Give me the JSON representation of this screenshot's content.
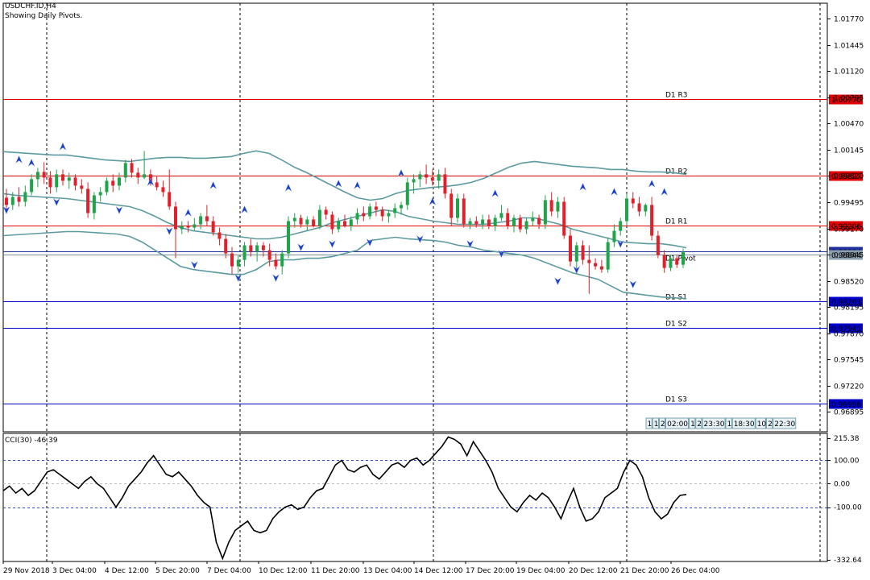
{
  "header": {
    "symbol": "USDCHF.ID,H4",
    "subtitle": "Showing Daily Pivots."
  },
  "chart_data": [
    {
      "type": "candlestick",
      "y_ticks": [
        "1.01770",
        "1.01445",
        "1.01120",
        "1.00795",
        "1.00470",
        "1.00145",
        "0.99820",
        "0.99495",
        "0.99170",
        "0.98845",
        "0.98520",
        "0.98195",
        "0.97870",
        "0.97545",
        "0.97220",
        "0.96895"
      ],
      "ylim": [
        0.9665,
        1.0196
      ],
      "x_tick_labels": [
        "29 Nov 2018",
        "3 Dec 04:00",
        "4 Dec 12:00",
        "5 Dec 20:00",
        "7 Dec 04:00",
        "10 Dec 12:00",
        "11 Dec 20:00",
        "13 Dec 04:00",
        "14 Dec 12:00",
        "17 Dec 20:00",
        "19 Dec 04:00",
        "20 Dec 12:00",
        "21 Dec 20:00",
        "26 Dec 04:00"
      ],
      "pivot_levels": [
        {
          "name": "D1 R3",
          "label": "D1 R3",
          "value": 1.0077,
          "value_label": "1.00770",
          "color": "#e00000"
        },
        {
          "name": "D1 R2",
          "label": "D1 R2",
          "value": 0.99827,
          "value_label": "0.99827",
          "color": "#e00000"
        },
        {
          "name": "D1 R1",
          "label": "D1 R1",
          "value": 0.99206,
          "value_label": "0.99206",
          "color": "#e00000"
        },
        {
          "name": "D1 Pivot",
          "label": "D1 Pivot",
          "value": 0.98884,
          "value_label": "0.98884",
          "color": "#1f2fa0"
        },
        {
          "name": "D1 S1",
          "label": "D1 S1",
          "value": 0.98263,
          "value_label": "0.98263",
          "color": "#0000c8"
        },
        {
          "name": "D1 S2",
          "label": "D1 S2",
          "value": 0.97941,
          "value_label": "0.97941",
          "color": "#0000c8"
        },
        {
          "name": "D1 S3",
          "label": "D1 S3",
          "value": 0.96998,
          "value_label": "0.96998",
          "color": "#0000c8"
        }
      ],
      "current_price": 0.98844,
      "current_price_label": "0.98844",
      "candles": [
        [
          0.9955,
          0.9966,
          0.9938,
          0.9946
        ],
        [
          0.9946,
          0.9962,
          0.994,
          0.9956
        ],
        [
          0.9956,
          0.9968,
          0.9944,
          0.995
        ],
        [
          0.995,
          0.997,
          0.9944,
          0.9962
        ],
        [
          0.9962,
          0.9984,
          0.9958,
          0.9978
        ],
        [
          0.9978,
          0.9992,
          0.9968,
          0.9987
        ],
        [
          0.9987,
          0.9999,
          0.9972,
          0.998
        ],
        [
          0.998,
          0.9988,
          0.996,
          0.9968
        ],
        [
          0.9968,
          0.999,
          0.9962,
          0.9984
        ],
        [
          0.9984,
          0.999,
          0.997,
          0.9976
        ],
        [
          0.9976,
          0.9986,
          0.9966,
          0.998
        ],
        [
          0.998,
          0.9984,
          0.9964,
          0.997
        ],
        [
          0.997,
          0.9978,
          0.996,
          0.9966
        ],
        [
          0.9966,
          0.9974,
          0.993,
          0.9936
        ],
        [
          0.9936,
          0.9962,
          0.9928,
          0.9958
        ],
        [
          0.9958,
          0.9968,
          0.995,
          0.9962
        ],
        [
          0.9962,
          0.998,
          0.9958,
          0.9976
        ],
        [
          0.9976,
          0.9984,
          0.9962,
          0.997
        ],
        [
          0.997,
          0.9986,
          0.9964,
          0.998
        ],
        [
          0.998,
          1.0002,
          0.9974,
          0.9998
        ],
        [
          0.9998,
          1.0003,
          0.998,
          0.9986
        ],
        [
          0.9986,
          0.9992,
          0.9972,
          0.998
        ],
        [
          0.998,
          1.0013,
          0.9978,
          0.9984
        ],
        [
          0.9984,
          0.999,
          0.997,
          0.9974
        ],
        [
          0.9974,
          0.9982,
          0.9964,
          0.9968
        ],
        [
          0.9968,
          0.9976,
          0.9956,
          0.9962
        ],
        [
          0.9962,
          0.999,
          0.994,
          0.9944
        ],
        [
          0.9944,
          0.995,
          0.988,
          0.9916
        ],
        [
          0.9916,
          0.9926,
          0.991,
          0.992
        ],
        [
          0.992,
          0.9926,
          0.9912,
          0.9918
        ],
        [
          0.9918,
          0.993,
          0.9914,
          0.9922
        ],
        [
          0.9922,
          0.9936,
          0.9916,
          0.9932
        ],
        [
          0.9932,
          0.9946,
          0.992,
          0.9926
        ],
        [
          0.9926,
          0.9932,
          0.9908,
          0.9912
        ],
        [
          0.9912,
          0.9918,
          0.9896,
          0.9904
        ],
        [
          0.9904,
          0.991,
          0.988,
          0.9886
        ],
        [
          0.9886,
          0.9894,
          0.986,
          0.987
        ],
        [
          0.987,
          0.9884,
          0.9862,
          0.9878
        ],
        [
          0.9878,
          0.99,
          0.987,
          0.9896
        ],
        [
          0.9896,
          0.9904,
          0.9882,
          0.9888
        ],
        [
          0.9888,
          0.99,
          0.9876,
          0.9896
        ],
        [
          0.9896,
          0.99,
          0.9882,
          0.989
        ],
        [
          0.989,
          0.9898,
          0.987,
          0.9878
        ],
        [
          0.9878,
          0.9886,
          0.9866,
          0.987
        ],
        [
          0.987,
          0.989,
          0.986,
          0.9886
        ],
        [
          0.9886,
          0.9932,
          0.988,
          0.9926
        ],
        [
          0.9926,
          0.9936,
          0.9918,
          0.993
        ],
        [
          0.993,
          0.9934,
          0.9918,
          0.9922
        ],
        [
          0.9922,
          0.9932,
          0.9914,
          0.9928
        ],
        [
          0.9928,
          0.9932,
          0.9918,
          0.992
        ],
        [
          0.992,
          0.9946,
          0.9916,
          0.994
        ],
        [
          0.994,
          0.9944,
          0.9928,
          0.9934
        ],
        [
          0.9934,
          0.9938,
          0.991,
          0.9916
        ],
        [
          0.9916,
          0.993,
          0.9912,
          0.9926
        ],
        [
          0.9926,
          0.9934,
          0.9918,
          0.992
        ],
        [
          0.992,
          0.9932,
          0.9914,
          0.9928
        ],
        [
          0.9928,
          0.9942,
          0.9922,
          0.9936
        ],
        [
          0.9936,
          0.9944,
          0.9926,
          0.9932
        ],
        [
          0.9932,
          0.9948,
          0.9928,
          0.9944
        ],
        [
          0.9944,
          0.995,
          0.9932,
          0.994
        ],
        [
          0.994,
          0.9944,
          0.9926,
          0.9932
        ],
        [
          0.9932,
          0.994,
          0.9924,
          0.9936
        ],
        [
          0.9936,
          0.9948,
          0.993,
          0.9942
        ],
        [
          0.9942,
          0.995,
          0.9934,
          0.9946
        ],
        [
          0.9946,
          0.998,
          0.994,
          0.9974
        ],
        [
          0.9974,
          0.9984,
          0.996,
          0.9978
        ],
        [
          0.9978,
          0.9988,
          0.9968,
          0.9984
        ],
        [
          0.9984,
          0.9996,
          0.9972,
          0.998
        ],
        [
          0.998,
          0.999,
          0.997,
          0.9976
        ],
        [
          0.9976,
          0.999,
          0.9966,
          0.9984
        ],
        [
          0.9984,
          0.9992,
          0.9954,
          0.996
        ],
        [
          0.996,
          0.9966,
          0.992,
          0.993
        ],
        [
          0.993,
          0.996,
          0.9924,
          0.9954
        ],
        [
          0.9954,
          0.996,
          0.9918,
          0.9922
        ],
        [
          0.9922,
          0.993,
          0.9916,
          0.9926
        ],
        [
          0.9926,
          0.9932,
          0.9918,
          0.9922
        ],
        [
          0.9922,
          0.9934,
          0.9916,
          0.9928
        ],
        [
          0.9928,
          0.9934,
          0.9916,
          0.992
        ],
        [
          0.992,
          0.9934,
          0.9914,
          0.993
        ],
        [
          0.993,
          0.9946,
          0.9926,
          0.9936
        ],
        [
          0.9936,
          0.9942,
          0.9916,
          0.992
        ],
        [
          0.992,
          0.9934,
          0.9912,
          0.993
        ],
        [
          0.993,
          0.9934,
          0.9912,
          0.9916
        ],
        [
          0.9916,
          0.993,
          0.991,
          0.9926
        ],
        [
          0.9926,
          0.9938,
          0.992,
          0.993
        ],
        [
          0.993,
          0.9934,
          0.9916,
          0.9922
        ],
        [
          0.9922,
          0.9958,
          0.9916,
          0.9952
        ],
        [
          0.9952,
          0.9962,
          0.9932,
          0.9938
        ],
        [
          0.9938,
          0.9956,
          0.993,
          0.995
        ],
        [
          0.995,
          0.9956,
          0.9904,
          0.9908
        ],
        [
          0.9908,
          0.9916,
          0.987,
          0.9876
        ],
        [
          0.9876,
          0.99,
          0.986,
          0.9896
        ],
        [
          0.9896,
          0.9902,
          0.9872,
          0.9878
        ],
        [
          0.9878,
          0.9896,
          0.9836,
          0.9874
        ],
        [
          0.9874,
          0.988,
          0.9866,
          0.987
        ],
        [
          0.987,
          0.9878,
          0.9862,
          0.9866
        ],
        [
          0.9866,
          0.9906,
          0.9862,
          0.99
        ],
        [
          0.99,
          0.9922,
          0.9894,
          0.9914
        ],
        [
          0.9914,
          0.993,
          0.9908,
          0.9926
        ],
        [
          0.9926,
          0.996,
          0.992,
          0.9954
        ],
        [
          0.9954,
          0.9962,
          0.9942,
          0.9948
        ],
        [
          0.9948,
          0.9956,
          0.9932,
          0.9938
        ],
        [
          0.9938,
          0.9948,
          0.9932,
          0.9946
        ],
        [
          0.9946,
          0.9956,
          0.9902,
          0.9908
        ],
        [
          0.9908,
          0.9914,
          0.988,
          0.9884
        ],
        [
          0.9884,
          0.989,
          0.9862,
          0.9868
        ],
        [
          0.9868,
          0.9884,
          0.9864,
          0.988
        ],
        [
          0.988,
          0.9884,
          0.9868,
          0.9872
        ],
        [
          0.9872,
          0.9892,
          0.9868,
          0.9888
        ]
      ],
      "bollinger": {
        "upper": [
          1.0012,
          1.0011,
          1.001,
          1.0009,
          1.0008,
          1.0008,
          1.0006,
          1.0004,
          1.0002,
          1.0001,
          1.0,
          1.0002,
          1.0004,
          1.0005,
          1.0005,
          1.0004,
          1.0004,
          1.0005,
          1.0006,
          1.001,
          1.0013,
          1.001,
          1.0002,
          0.9993,
          0.9986,
          0.9978,
          0.997,
          0.9962,
          0.9955,
          0.9952,
          0.9954,
          0.996,
          0.9964,
          0.9966,
          0.9968,
          0.9969,
          0.9971,
          0.9974,
          0.9979,
          0.9986,
          0.9993,
          0.9998,
          1.0,
          0.9998,
          0.9996,
          0.9994,
          0.9993,
          0.9992,
          0.999,
          0.999,
          0.9988,
          0.9987,
          0.9987,
          0.9986,
          0.9984
        ],
        "middle": [
          0.996,
          0.9958,
          0.9957,
          0.9956,
          0.9955,
          0.9954,
          0.9952,
          0.995,
          0.9948,
          0.9946,
          0.9944,
          0.9939,
          0.9932,
          0.9924,
          0.9918,
          0.9914,
          0.9912,
          0.991,
          0.9908,
          0.9906,
          0.9904,
          0.9904,
          0.9906,
          0.991,
          0.9914,
          0.9918,
          0.9924,
          0.9928,
          0.9932,
          0.9936,
          0.994,
          0.9938,
          0.9932,
          0.9929,
          0.9926,
          0.9924,
          0.9922,
          0.9922,
          0.9922,
          0.9924,
          0.9926,
          0.993,
          0.993,
          0.9926,
          0.9922,
          0.9916,
          0.9912,
          0.9908,
          0.9904,
          0.99,
          0.9899,
          0.9898,
          0.9898,
          0.9896,
          0.9893
        ],
        "lower": [
          0.9908,
          0.9909,
          0.991,
          0.9911,
          0.9912,
          0.9913,
          0.9913,
          0.9912,
          0.9911,
          0.991,
          0.9907,
          0.99,
          0.989,
          0.988,
          0.987,
          0.9866,
          0.9864,
          0.9862,
          0.986,
          0.986,
          0.9866,
          0.9876,
          0.9878,
          0.9878,
          0.988,
          0.988,
          0.9882,
          0.9886,
          0.989,
          0.9902,
          0.9904,
          0.9906,
          0.9904,
          0.9903,
          0.9902,
          0.99,
          0.9896,
          0.9894,
          0.989,
          0.9888,
          0.9886,
          0.9884,
          0.988,
          0.9874,
          0.9868,
          0.9862,
          0.9858,
          0.9854,
          0.9846,
          0.9838,
          0.9836,
          0.9834,
          0.9832,
          0.9831,
          0.983
        ]
      },
      "fractals_up": [
        [
          2,
          1.0002
        ],
        [
          4,
          0.9998
        ],
        [
          9,
          1.0018
        ],
        [
          23,
          0.9974
        ],
        [
          29,
          0.9936
        ],
        [
          33,
          0.997
        ],
        [
          38,
          0.994
        ],
        [
          45,
          0.9967
        ],
        [
          53,
          0.9972
        ],
        [
          56,
          0.997
        ],
        [
          63,
          0.9985
        ],
        [
          68,
          0.995
        ],
        [
          78,
          0.996
        ],
        [
          92,
          0.9968
        ],
        [
          97,
          0.9962
        ],
        [
          103,
          0.9972
        ],
        [
          105,
          0.9962
        ]
      ],
      "fractals_down": [
        [
          0,
          0.994
        ],
        [
          8,
          0.995
        ],
        [
          18,
          0.994
        ],
        [
          26,
          0.9914
        ],
        [
          30,
          0.9872
        ],
        [
          37,
          0.9856
        ],
        [
          43,
          0.9856
        ],
        [
          47,
          0.9894
        ],
        [
          52,
          0.9898
        ],
        [
          58,
          0.99
        ],
        [
          66,
          0.9904
        ],
        [
          74,
          0.9898
        ],
        [
          79,
          0.9886
        ],
        [
          88,
          0.9852
        ],
        [
          91,
          0.9866
        ],
        [
          98,
          0.9898
        ],
        [
          100,
          0.9848
        ]
      ]
    },
    {
      "type": "line",
      "indicator_label": "CCI(30) -46.39",
      "y_ticks": [
        "215.38",
        "100.00",
        "0.00",
        "-100.00",
        "-332.64"
      ],
      "ylim": [
        -332.64,
        215.38
      ],
      "levels": [
        100,
        0,
        -100
      ],
      "values": [
        -30,
        -10,
        -40,
        -20,
        -50,
        -30,
        10,
        50,
        60,
        40,
        20,
        0,
        -20,
        10,
        30,
        0,
        -20,
        -60,
        -100,
        -60,
        -10,
        20,
        50,
        90,
        120,
        80,
        40,
        30,
        50,
        20,
        -10,
        -50,
        -80,
        -100,
        -250,
        -320,
        -250,
        -200,
        -180,
        -160,
        -200,
        -210,
        -200,
        -150,
        -120,
        -100,
        -90,
        -110,
        -100,
        -60,
        -30,
        -20,
        30,
        80,
        100,
        60,
        50,
        70,
        80,
        40,
        20,
        50,
        80,
        90,
        70,
        100,
        110,
        80,
        100,
        130,
        160,
        200,
        190,
        170,
        120,
        180,
        140,
        100,
        50,
        -20,
        -60,
        -100,
        -120,
        -80,
        -50,
        -70,
        -40,
        -60,
        -100,
        -150,
        -80,
        -20,
        -100,
        -160,
        -150,
        -120,
        -60,
        -40,
        -20,
        50,
        100,
        80,
        30,
        -60,
        -120,
        -150,
        -130,
        -80,
        -50,
        -46
      ]
    }
  ],
  "period_separator_box": {
    "items": [
      "1",
      "1",
      "2",
      "02:00",
      "1",
      "2",
      "23:30",
      "1",
      "18:30",
      "10",
      "2",
      "22:30"
    ]
  }
}
